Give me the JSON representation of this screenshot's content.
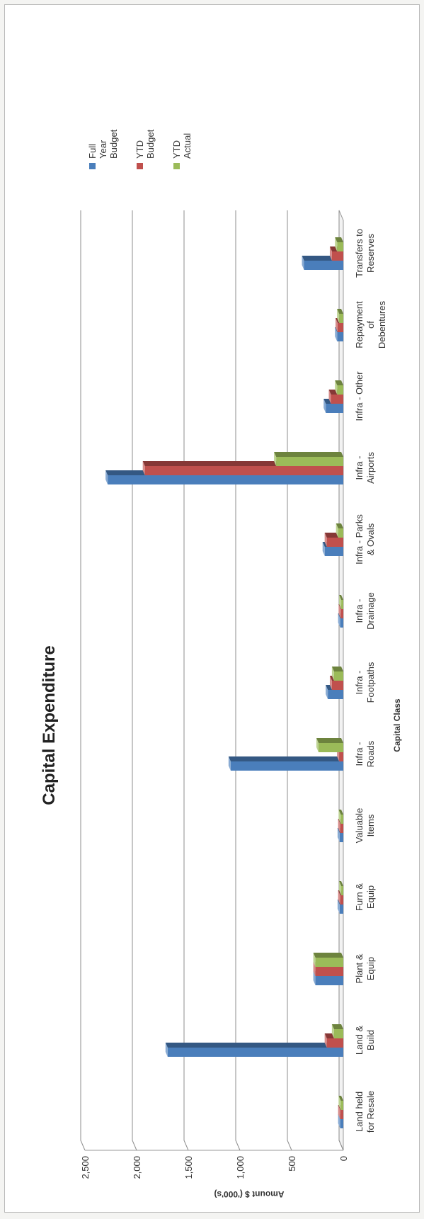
{
  "chart_data": {
    "type": "bar",
    "title": "Capital Expenditure",
    "xlabel": "Capital Class",
    "ylabel": "Amount $ ('000's)",
    "ylim": [
      0,
      2500
    ],
    "yticks": [
      "0",
      "500",
      "1,000",
      "1,500",
      "2,000",
      "2,500"
    ],
    "grid": true,
    "legend_position": "right",
    "categories": [
      [
        "Land held",
        "for Resale"
      ],
      [
        "Land &",
        "Build"
      ],
      [
        "Plant &",
        "Equip"
      ],
      [
        "Furn &",
        "Equip"
      ],
      [
        "Valuable",
        "Items"
      ],
      [
        "Infra -",
        "Roads"
      ],
      [
        "Infra -",
        "Footpaths"
      ],
      [
        "Infra -",
        "Drainage"
      ],
      [
        "Infra - Parks",
        "& Ovals"
      ],
      [
        "Infra -",
        "Airports"
      ],
      [
        "Infra - Other"
      ],
      [
        "Repayment",
        "of",
        "Debentures"
      ],
      [
        "Transfers to",
        "Reserves"
      ]
    ],
    "series": [
      {
        "name": "Full Year Budget",
        "legend_lines": [
          "Full",
          "Year",
          "Budget"
        ],
        "color": "#4a7ebb",
        "values": [
          30,
          1700,
          270,
          35,
          35,
          1090,
          150,
          30,
          180,
          2280,
          170,
          60,
          380
        ]
      },
      {
        "name": "YTD Budget",
        "legend_lines": [
          "YTD",
          "Budget"
        ],
        "color": "#c0504d",
        "values": [
          30,
          160,
          270,
          30,
          30,
          40,
          110,
          25,
          160,
          1920,
          120,
          55,
          110
        ]
      },
      {
        "name": "YTD Actual",
        "legend_lines": [
          "YTD",
          "Actual"
        ],
        "color": "#9bbb59",
        "values": [
          25,
          90,
          270,
          20,
          25,
          240,
          90,
          20,
          50,
          650,
          60,
          40,
          60
        ]
      }
    ]
  }
}
